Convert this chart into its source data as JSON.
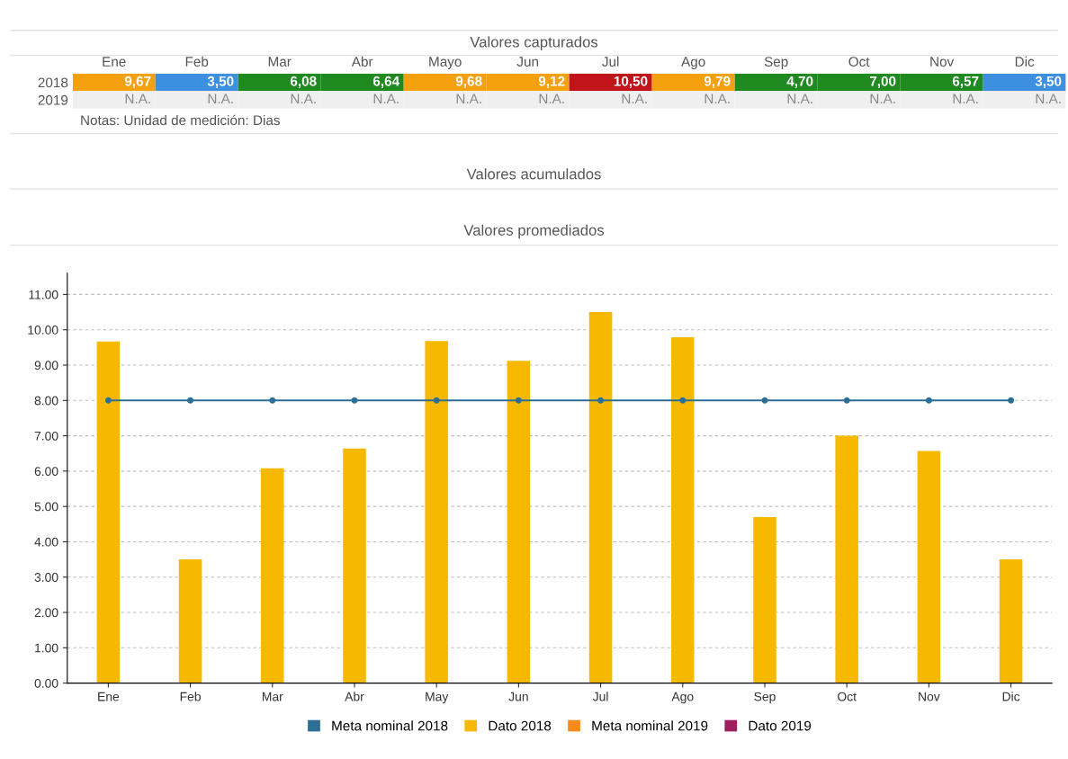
{
  "chart_data": [
    {
      "type": "other",
      "title": "Valores capturados",
      "categories": [
        "Ene",
        "Feb",
        "Mar",
        "Abr",
        "Mayo",
        "Jun",
        "Jul",
        "Ago",
        "Sep",
        "Oct",
        "Nov",
        "Dic"
      ],
      "y_categories": [
        "2018",
        "2019"
      ],
      "cell_labels": [
        [
          "9,67",
          "3,50",
          "6,08",
          "6,64",
          "9,68",
          "9,12",
          "10,50",
          "9,79",
          "4,70",
          "7,00",
          "6,57",
          "3,50"
        ],
        [
          "N.A.",
          "N.A.",
          "N.A.",
          "N.A.",
          "N.A.",
          "N.A.",
          "N.A.",
          "N.A.",
          "N.A.",
          "N.A.",
          "N.A.",
          "N.A."
        ]
      ],
      "colors": [
        [
          "#f5a00f",
          "#3d8fe0",
          "#1f8a1f",
          "#1f8a1f",
          "#f5a00f",
          "#f5a00f",
          "#c0141a",
          "#f5a00f",
          "#1f8a1f",
          "#1f8a1f",
          "#1f8a1f",
          "#3d8fe0"
        ],
        [
          "#efefef",
          "#efefef",
          "#efefef",
          "#efefef",
          "#efefef",
          "#efefef",
          "#efefef",
          "#efefef",
          "#efefef",
          "#efefef",
          "#efefef",
          "#efefef"
        ]
      ],
      "annotations": [
        "Notas: Unidad de medición: Dias",
        "Valores acumulados",
        "Valores promediados"
      ]
    },
    {
      "type": "bar",
      "categories": [
        "Ene",
        "Feb",
        "Mar",
        "Abr",
        "May",
        "Jun",
        "Jul",
        "Ago",
        "Sep",
        "Oct",
        "Nov",
        "Dic"
      ],
      "series": [
        {
          "name": "Meta nominal 2018",
          "type": "line",
          "marker": "circle",
          "color": "#2b6f96",
          "values": [
            8,
            8,
            8,
            8,
            8,
            8,
            8,
            8,
            8,
            8,
            8,
            8
          ]
        },
        {
          "name": "Dato 2018",
          "type": "bar",
          "color": "#f7b800",
          "values": [
            9.67,
            3.5,
            6.08,
            6.64,
            9.68,
            9.12,
            10.5,
            9.79,
            4.7,
            7.0,
            6.57,
            3.5
          ]
        },
        {
          "name": "Meta nominal 2019",
          "type": "line",
          "color": "#f58a1f",
          "values": [
            null,
            null,
            null,
            null,
            null,
            null,
            null,
            null,
            null,
            null,
            null,
            null
          ]
        },
        {
          "name": "Dato 2019",
          "type": "bar",
          "color": "#9e1f5e",
          "values": [
            null,
            null,
            null,
            null,
            null,
            null,
            null,
            null,
            null,
            null,
            null,
            null
          ]
        }
      ],
      "ylim": [
        0,
        11.6
      ],
      "yticks": [
        {
          "value": 0,
          "label": "0.00"
        },
        {
          "value": 1,
          "label": "1.00"
        },
        {
          "value": 2,
          "label": "2.00"
        },
        {
          "value": 3,
          "label": "3.00"
        },
        {
          "value": 4,
          "label": "4.00"
        },
        {
          "value": 5,
          "label": "5.00"
        },
        {
          "value": 6,
          "label": "6.00"
        },
        {
          "value": 7,
          "label": "7.00"
        },
        {
          "value": 8,
          "label": "8.00"
        },
        {
          "value": 9,
          "label": "9.00"
        },
        {
          "value": 10,
          "label": "10.00"
        },
        {
          "value": 11,
          "label": "11.00"
        }
      ],
      "grid": "y",
      "legend": "bottom"
    }
  ]
}
